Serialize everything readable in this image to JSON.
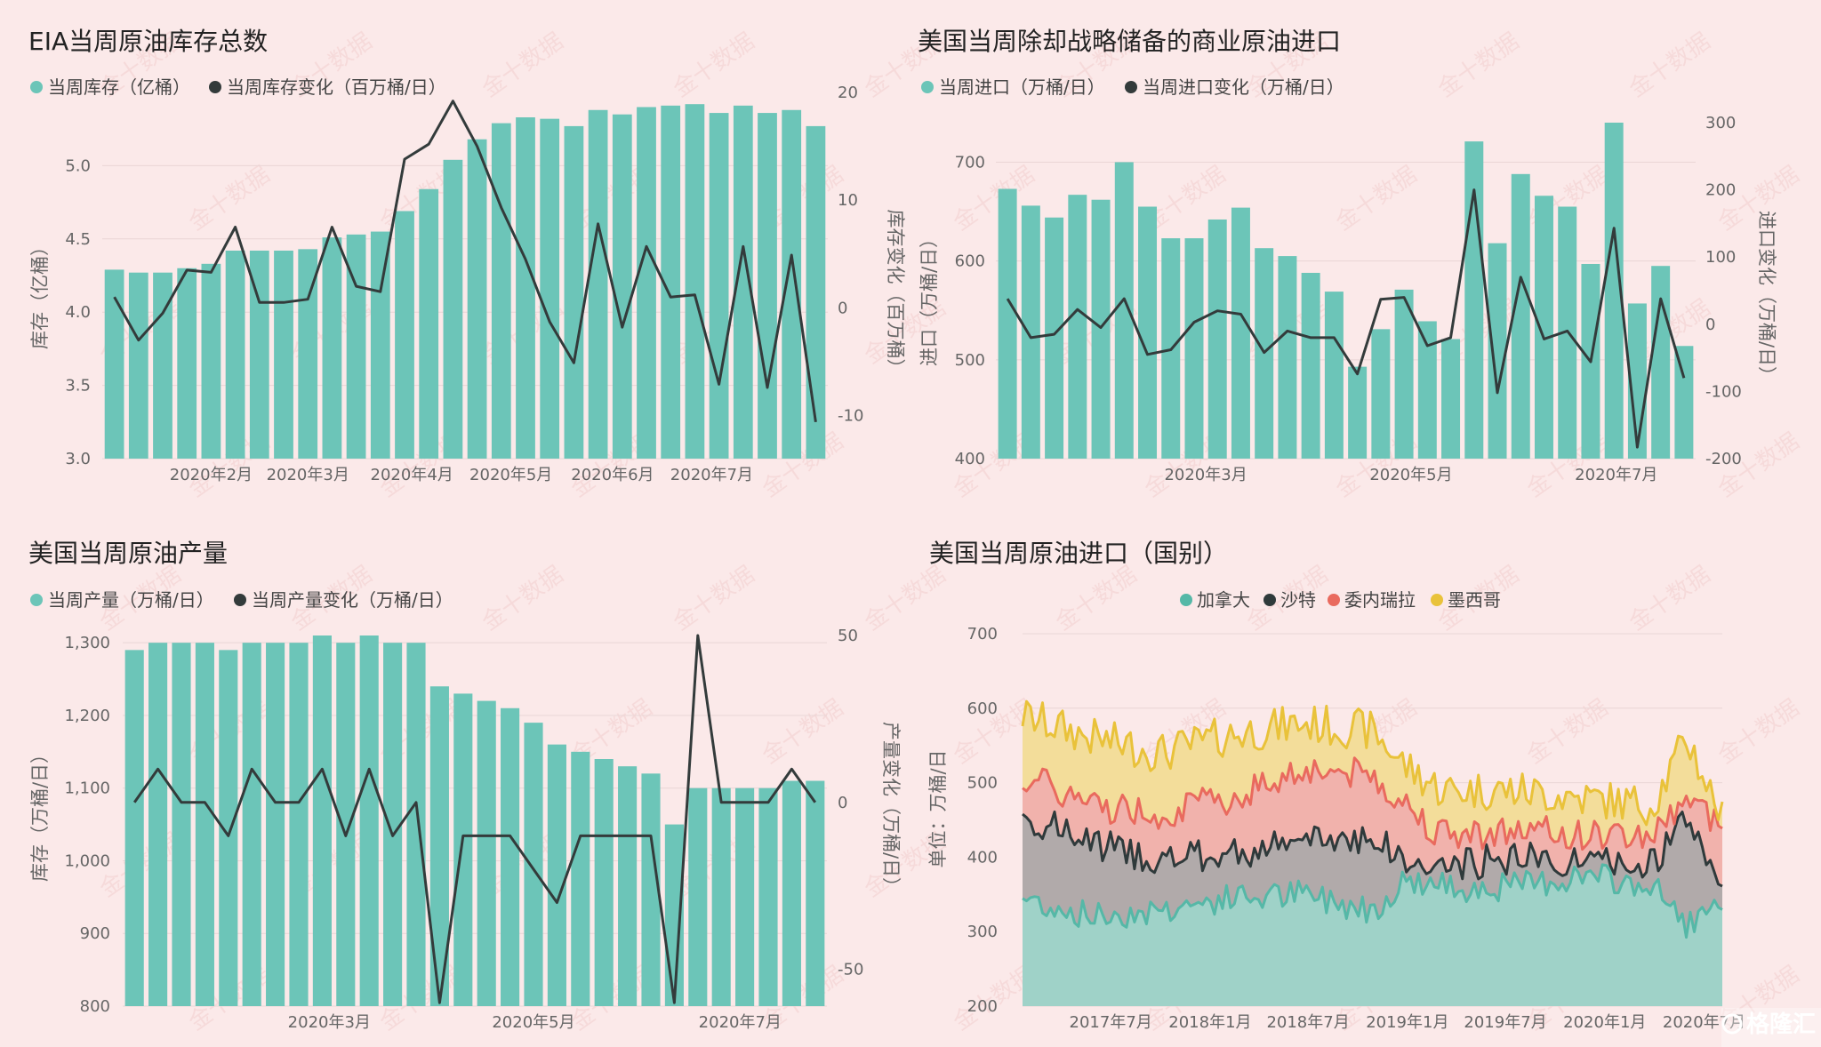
{
  "chart_data": [
    {
      "type": "bar",
      "title": "EIA当周原油库存总数",
      "legend": [
        {
          "name": "当周库存（亿桶）",
          "color": "#6cc5b8"
        },
        {
          "name": "当周库存变化（百万桶/日）",
          "color": "#333b3b"
        }
      ],
      "ylabel": "库存（亿桶）",
      "y2label": "库存变化（百万桶）",
      "ylim": [
        3.0,
        5.5
      ],
      "yticks": [
        "3.0",
        "3.5",
        "4.0",
        "4.5",
        "5.0"
      ],
      "y2lim": [
        -14,
        20
      ],
      "y2ticks": [
        "-10",
        "0",
        "10",
        "20"
      ],
      "xticks": [
        {
          "label": "2020年2月",
          "index": 4.5
        },
        {
          "label": "2020年3月",
          "index": 8.5
        },
        {
          "label": "2020年4月",
          "index": 12.8
        },
        {
          "label": "2020年5月",
          "index": 16.9
        },
        {
          "label": "2020年6月",
          "index": 21.1
        },
        {
          "label": "2020年7月",
          "index": 25.2
        }
      ],
      "bar_series": {
        "name": "当周库存（亿桶）",
        "color": "#6cc5b8",
        "values": [
          4.29,
          4.27,
          4.27,
          4.3,
          4.33,
          4.42,
          4.42,
          4.42,
          4.43,
          4.51,
          4.53,
          4.55,
          4.69,
          4.84,
          5.04,
          5.18,
          5.29,
          5.33,
          5.32,
          5.27,
          5.38,
          5.35,
          5.4,
          5.41,
          5.42,
          5.36,
          5.41,
          5.36,
          5.38,
          5.27
        ]
      },
      "line_series": {
        "name": "当周库存变化（百万桶/日）",
        "color": "#333b3b",
        "values": [
          1,
          -3,
          -0.5,
          3.5,
          3.3,
          7.5,
          0.5,
          0.5,
          0.8,
          7.5,
          2,
          1.5,
          13.8,
          15.2,
          19.2,
          15,
          9.3,
          4.5,
          -1.3,
          -5.1,
          7.8,
          -1.8,
          5.7,
          1,
          1.2,
          -7.1,
          5.7,
          -7.4,
          4.9,
          -10.6
        ]
      }
    },
    {
      "type": "bar",
      "title": "美国当周除却战略储备的商业原油进口",
      "legend": [
        {
          "name": "当周进口（万桶/日）",
          "color": "#6cc5b8"
        },
        {
          "name": "当周进口变化（万桶/日）",
          "color": "#333b3b"
        }
      ],
      "ylabel": "进口（万桶/日）",
      "y2label": "进口变化（万桶/日）",
      "ylim": [
        400,
        740
      ],
      "yticks": [
        "400",
        "500",
        "600",
        "700"
      ],
      "y2lim": [
        -200,
        300
      ],
      "y2ticks": [
        "-200",
        "-100",
        "0",
        "100",
        "200",
        "300"
      ],
      "xticks": [
        {
          "label": "2020年3月",
          "index": 9.0
        },
        {
          "label": "2020年5月",
          "index": 17.8
        },
        {
          "label": "2020年7月",
          "index": 26.6
        }
      ],
      "bar_series": {
        "name": "当周进口（万桶/日）",
        "color": "#6cc5b8",
        "values": [
          673,
          656,
          644,
          667,
          662,
          700,
          655,
          623,
          623,
          642,
          654,
          613,
          605,
          588,
          569,
          493,
          531,
          571,
          539,
          521,
          721,
          618,
          688,
          666,
          655,
          597,
          740,
          557,
          595,
          514
        ]
      },
      "line_series": {
        "name": "当周进口变化（万桶/日）",
        "color": "#333b3b",
        "values": [
          38,
          -20,
          -15,
          22,
          -5,
          38,
          -45,
          -38,
          3,
          20,
          15,
          -42,
          -10,
          -20,
          -20,
          -74,
          37,
          40,
          -32,
          -20,
          200,
          -102,
          70,
          -22,
          -10,
          -56,
          143,
          -183,
          38,
          -80
        ]
      }
    },
    {
      "type": "bar",
      "title": "美国当周原油产量",
      "legend": [
        {
          "name": "当周产量（万桶/日）",
          "color": "#6cc5b8"
        },
        {
          "name": "当周产量变化（万桶/日）",
          "color": "#333b3b"
        }
      ],
      "ylabel": "库存（万桶/日）",
      "y2label": "产量变化（万桶/日）",
      "ylim": [
        800,
        1310
      ],
      "yticks": [
        "800",
        "900",
        "1,000",
        "1,100",
        "1,200",
        "1,300"
      ],
      "y2lim": [
        -61,
        50
      ],
      "y2ticks": [
        "-50",
        "0",
        "50"
      ],
      "xticks": [
        {
          "label": "2020年3月",
          "index": 8.8
        },
        {
          "label": "2020年5月",
          "index": 17.5
        },
        {
          "label": "2020年7月",
          "index": 26.3
        }
      ],
      "bar_series": {
        "name": "当周产量（万桶/日）",
        "color": "#6cc5b8",
        "values": [
          1290,
          1300,
          1300,
          1300,
          1290,
          1300,
          1300,
          1300,
          1310,
          1300,
          1310,
          1300,
          1300,
          1240,
          1230,
          1220,
          1210,
          1190,
          1160,
          1150,
          1140,
          1130,
          1120,
          1050,
          1100,
          1100,
          1100,
          1100,
          1110,
          1110
        ]
      },
      "line_series": {
        "name": "当周产量变化（万桶/日）",
        "color": "#333b3b",
        "values": [
          0,
          10,
          0,
          0,
          -10,
          10,
          0,
          0,
          10,
          -10,
          10,
          -10,
          0,
          -60,
          -10,
          -10,
          -10,
          -20,
          -30,
          -10,
          -10,
          -10,
          -10,
          -60,
          50,
          0,
          0,
          0,
          10,
          0
        ]
      }
    },
    {
      "type": "area",
      "title": "美国当周原油进口（国别）",
      "ylabel": "单位：万桶/日",
      "ylim": [
        200,
        700
      ],
      "yticks": [
        "200",
        "300",
        "400",
        "500",
        "600",
        "700"
      ],
      "stacked": true,
      "xticks": [
        {
          "label": "2017年7月",
          "t": 0.126
        },
        {
          "label": "2018年1月",
          "t": 0.268
        },
        {
          "label": "2018年7月",
          "t": 0.408
        },
        {
          "label": "2019年1月",
          "t": 0.55
        },
        {
          "label": "2019年7月",
          "t": 0.69
        },
        {
          "label": "2020年1月",
          "t": 0.832
        },
        {
          "label": "2020年7月",
          "t": 0.974
        }
      ],
      "x_points": 176,
      "series": [
        {
          "name": "加拿大",
          "color": "#55b8a7",
          "fill": "#9fd2c8"
        },
        {
          "name": "沙特",
          "color": "#2f3a3b",
          "fill": "#b1aaaa"
        },
        {
          "name": "委内瑞拉",
          "color": "#e96a5e",
          "fill": "#f1b2ac"
        },
        {
          "name": "墨西哥",
          "color": "#e9c23a",
          "fill": "#f3dd9a"
        }
      ],
      "anchors": {
        "canada": [
          [
            0,
            345
          ],
          [
            0.1,
            320
          ],
          [
            0.2,
            330
          ],
          [
            0.3,
            345
          ],
          [
            0.4,
            350
          ],
          [
            0.5,
            330
          ],
          [
            0.55,
            370
          ],
          [
            0.6,
            360
          ],
          [
            0.7,
            360
          ],
          [
            0.8,
            375
          ],
          [
            0.9,
            360
          ],
          [
            0.95,
            310
          ],
          [
            1,
            330
          ]
        ],
        "saudi": [
          [
            0,
            455
          ],
          [
            0.1,
            420
          ],
          [
            0.2,
            395
          ],
          [
            0.3,
            405
          ],
          [
            0.4,
            420
          ],
          [
            0.5,
            430
          ],
          [
            0.55,
            390
          ],
          [
            0.6,
            385
          ],
          [
            0.7,
            400
          ],
          [
            0.8,
            390
          ],
          [
            0.9,
            390
          ],
          [
            0.95,
            450
          ],
          [
            1,
            365
          ]
        ],
        "venezuela": [
          [
            0,
            510
          ],
          [
            0.1,
            470
          ],
          [
            0.2,
            460
          ],
          [
            0.3,
            480
          ],
          [
            0.4,
            520
          ],
          [
            0.5,
            510
          ],
          [
            0.55,
            470
          ],
          [
            0.6,
            430
          ],
          [
            0.7,
            435
          ],
          [
            0.8,
            430
          ],
          [
            0.9,
            430
          ],
          [
            0.95,
            480
          ],
          [
            1,
            440
          ]
        ],
        "mexico": [
          [
            0,
            590
          ],
          [
            0.1,
            560
          ],
          [
            0.2,
            540
          ],
          [
            0.3,
            565
          ],
          [
            0.4,
            580
          ],
          [
            0.5,
            570
          ],
          [
            0.55,
            520
          ],
          [
            0.6,
            490
          ],
          [
            0.7,
            490
          ],
          [
            0.8,
            480
          ],
          [
            0.9,
            470
          ],
          [
            0.95,
            560
          ],
          [
            1,
            450
          ]
        ]
      }
    }
  ],
  "watermark": "金十数据",
  "corner_logo": "格隆汇"
}
